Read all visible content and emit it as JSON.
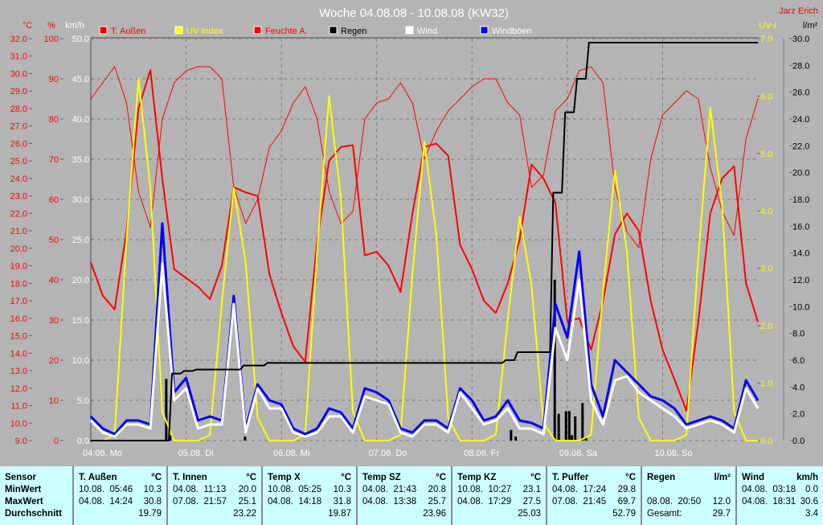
{
  "header": {
    "title": "Woche 04.08.08 - 10.08.08 (KW32)",
    "author": "Jarz Erich"
  },
  "units": {
    "temp": "°C",
    "hum": "%",
    "wind": "km/h",
    "uv": "UV-I",
    "rain": "l/m²"
  },
  "colors": {
    "t_aussen": "#ff0000",
    "uv": "#ffff00",
    "feuchte": "#ff0000",
    "regen": "#000000",
    "wind": "#ffffff",
    "windboeen": "#0000ff",
    "bg": "#b4b4b4",
    "table_bg": "#ccffff"
  },
  "legend": [
    {
      "label": "T. Außen",
      "color": "#ff0000",
      "text_color": "#ff0000"
    },
    {
      "label": "UV Index",
      "color": "#ffff00",
      "text_color": "#ffff00"
    },
    {
      "label": "Feuchte A.",
      "color": "#ff0000",
      "text_color": "#ff0000"
    },
    {
      "label": "Regen",
      "color": "#000000",
      "text_color": "#000000"
    },
    {
      "label": "Wind",
      "color": "#ffffff",
      "text_color": "#ffffff"
    },
    {
      "label": "Windböen",
      "color": "#0000ff",
      "text_color": "#ffffff"
    }
  ],
  "chart_data": {
    "type": "line",
    "title": "Woche 04.08.08 - 10.08.08 (KW32)",
    "x_ticks": [
      "04.08. Mo",
      "05.08. Di",
      "06.08. Mi",
      "07.08. Do",
      "08.08. Fr",
      "09.08. Sa",
      "10.08. So"
    ],
    "axes": {
      "temp": {
        "label": "°C",
        "range": [
          9.0,
          32.0
        ],
        "ticks": [
          "9.0",
          "10.0",
          "11.0",
          "12.0",
          "13.0",
          "14.0",
          "15.0",
          "16.0",
          "17.0",
          "18.0",
          "19.0",
          "20.0",
          "21.0",
          "22.0",
          "23.0",
          "24.0",
          "25.0",
          "26.0",
          "27.0",
          "28.0",
          "29.0",
          "30.0",
          "31.0",
          "32.0"
        ]
      },
      "hum": {
        "label": "%",
        "range": [
          0,
          100
        ],
        "ticks": [
          "0",
          "10",
          "20",
          "30",
          "40",
          "50",
          "60",
          "70",
          "80",
          "90",
          "100"
        ]
      },
      "wind": {
        "label": "km/h",
        "range": [
          0,
          50
        ],
        "ticks": [
          "0.0",
          "5.0",
          "10.0",
          "15.0",
          "20.0",
          "25.0",
          "30.0",
          "35.0",
          "40.0",
          "45.0",
          "50.0"
        ]
      },
      "uv": {
        "label": "UV-I",
        "range": [
          0,
          7
        ],
        "ticks": [
          "0.0",
          "1.0",
          "2.0",
          "3.0",
          "4.0",
          "5.0",
          "6.0",
          "7.0"
        ]
      },
      "rain": {
        "label": "l/m²",
        "range": [
          0,
          30
        ],
        "ticks": [
          "0.0",
          "2.0",
          "4.0",
          "6.0",
          "8.0",
          "10.0",
          "12.0",
          "14.0",
          "16.0",
          "18.0",
          "20.0",
          "22.0",
          "24.0",
          "26.0",
          "28.0",
          "30.0"
        ]
      }
    },
    "grid": true,
    "legend_position": "top",
    "x": [
      "04.08. 00:00",
      "04.08. 03:00",
      "04.08. 06:00",
      "04.08. 09:00",
      "04.08. 12:00",
      "04.08. 15:00",
      "04.08. 18:00",
      "04.08. 21:00",
      "05.08. 00:00",
      "05.08. 03:00",
      "05.08. 06:00",
      "05.08. 09:00",
      "05.08. 12:00",
      "05.08. 15:00",
      "05.08. 18:00",
      "05.08. 21:00",
      "06.08. 00:00",
      "06.08. 03:00",
      "06.08. 06:00",
      "06.08. 09:00",
      "06.08. 12:00",
      "06.08. 15:00",
      "06.08. 18:00",
      "06.08. 21:00",
      "07.08. 00:00",
      "07.08. 03:00",
      "07.08. 06:00",
      "07.08. 09:00",
      "07.08. 12:00",
      "07.08. 15:00",
      "07.08. 18:00",
      "07.08. 21:00",
      "08.08. 00:00",
      "08.08. 03:00",
      "08.08. 06:00",
      "08.08. 09:00",
      "08.08. 12:00",
      "08.08. 15:00",
      "08.08. 18:00",
      "08.08. 21:00",
      "09.08. 00:00",
      "09.08. 03:00",
      "09.08. 06:00",
      "09.08. 09:00",
      "09.08. 12:00",
      "09.08. 15:00",
      "09.08. 18:00",
      "09.08. 21:00",
      "10.08. 00:00",
      "10.08. 03:00",
      "10.08. 06:00",
      "10.08. 09:00",
      "10.08. 12:00",
      "10.08. 15:00",
      "10.08. 18:00",
      "10.08. 21:00",
      "11.08. 00:00"
    ],
    "series": [
      {
        "name": "Feuchte A.",
        "axis": "hum",
        "color": "#ff0000",
        "width": 1,
        "values": [
          85,
          89,
          93,
          84,
          62,
          53,
          80,
          89,
          92,
          93,
          93,
          90,
          63,
          54,
          60,
          73,
          77,
          84,
          88,
          80,
          62,
          54,
          57,
          80,
          84,
          85,
          89,
          84,
          70,
          77,
          82,
          85,
          88,
          90,
          90,
          84,
          81,
          63,
          66,
          82,
          85,
          92,
          93,
          89,
          63,
          52,
          48,
          70,
          81,
          84,
          87,
          85,
          68,
          57,
          51,
          75,
          85
        ]
      },
      {
        "name": "T. Außen",
        "axis": "temp",
        "color": "#ff0000",
        "width": 2,
        "values": [
          19.2,
          17.3,
          16.5,
          21.0,
          28.0,
          30.2,
          24.0,
          18.8,
          18.3,
          17.8,
          17.1,
          19.0,
          23.5,
          23.2,
          23.0,
          18.5,
          16.3,
          14.4,
          13.5,
          20.4,
          25.0,
          25.8,
          25.9,
          19.6,
          19.8,
          19.0,
          17.5,
          22.0,
          25.8,
          26.0,
          25.3,
          20.2,
          18.8,
          17.0,
          16.3,
          18.0,
          20.5,
          24.8,
          24.0,
          22.6,
          15.8,
          16.0,
          14.2,
          17.0,
          20.8,
          22.0,
          21.0,
          17.0,
          14.2,
          12.5,
          10.7,
          15.8,
          22.0,
          24.0,
          24.7,
          18.0,
          15.8
        ]
      },
      {
        "name": "UV Index",
        "axis": "uv",
        "color": "#ffff00",
        "width": 2,
        "values": [
          0,
          0,
          0.1,
          3.5,
          6.3,
          4.4,
          0.5,
          0,
          0,
          0,
          0.1,
          2.4,
          4.4,
          3.1,
          0.4,
          0,
          0,
          0,
          0.1,
          3.3,
          6.0,
          4.2,
          0.5,
          0,
          0,
          0,
          0.1,
          2.9,
          5.2,
          3.6,
          0.4,
          0,
          0,
          0,
          0.1,
          2.1,
          3.9,
          2.7,
          0.3,
          0,
          0,
          0,
          0.1,
          2.6,
          4.7,
          3.3,
          0.4,
          0,
          0,
          0,
          0.1,
          3.2,
          5.8,
          4.1,
          0.5,
          0,
          0
        ]
      },
      {
        "name": "Windböen",
        "axis": "wind",
        "color": "#0000ff",
        "width": 3,
        "values": [
          3,
          1.5,
          0.8,
          2.5,
          2.5,
          2,
          27,
          6,
          7.8,
          2.5,
          3,
          2.5,
          18,
          1.5,
          7,
          5,
          4.5,
          1.5,
          0.8,
          1.5,
          4,
          3.5,
          1.5,
          6.5,
          6,
          5,
          1.5,
          1,
          2.5,
          2.5,
          1.5,
          6.5,
          5,
          2.5,
          3,
          5,
          2.5,
          2.2,
          1.5,
          17,
          12.8,
          23.5,
          7,
          3,
          10,
          8.5,
          7,
          5.5,
          5,
          4,
          2,
          2.5,
          3,
          2.5,
          1.5,
          7.5,
          5
        ]
      },
      {
        "name": "Wind",
        "axis": "wind",
        "color": "#ffffff",
        "width": 3,
        "values": [
          2.5,
          1,
          0.5,
          2,
          2,
          1.5,
          22,
          5,
          6.5,
          1.5,
          2,
          2,
          17,
          1,
          6.5,
          4,
          4,
          1,
          0.5,
          1,
          3,
          3,
          1,
          5.5,
          5,
          4.5,
          1,
          0.5,
          2,
          2,
          1,
          6,
          4,
          2,
          2.5,
          4,
          1.5,
          1.5,
          0.8,
          14,
          10,
          20,
          5,
          2,
          7.5,
          8,
          6,
          5,
          4,
          3,
          1.5,
          2,
          2.5,
          2,
          1,
          6.5,
          4
        ]
      },
      {
        "name": "Regen",
        "axis": "rain",
        "color": "#000000",
        "width": 2,
        "step": true,
        "values": [
          0,
          0,
          0,
          0,
          0,
          0,
          0,
          5.0,
          5.2,
          5.3,
          5.3,
          5.3,
          5.3,
          5.6,
          5.6,
          5.8,
          5.8,
          5.8,
          5.8,
          5.8,
          5.8,
          5.8,
          5.8,
          5.8,
          5.8,
          5.8,
          5.8,
          5.8,
          5.8,
          5.8,
          5.8,
          5.8,
          5.8,
          5.8,
          5.8,
          6.0,
          6.6,
          6.6,
          6.6,
          18.5,
          24.5,
          27.0,
          29.7,
          29.7,
          29.7,
          29.7,
          29.7,
          29.7,
          29.7,
          29.7,
          29.7,
          29.7,
          29.7,
          29.7,
          29.7,
          29.7,
          29.7
        ]
      }
    ],
    "rain_bars": {
      "axis": "rain",
      "color": "#000000",
      "points": [
        {
          "x": "04.08. 19:00",
          "v": 4.6
        },
        {
          "x": "04.08. 20:00",
          "v": 0.4
        },
        {
          "x": "05.08. 14:50",
          "v": 0.3
        },
        {
          "x": "08.08. 09:50",
          "v": 0.8
        },
        {
          "x": "08.08. 11:00",
          "v": 0.3
        },
        {
          "x": "08.08. 20:50",
          "v": 12.0
        },
        {
          "x": "08.08. 21:50",
          "v": 2.0
        },
        {
          "x": "08.08. 23:40",
          "v": 2.2
        },
        {
          "x": "09.08. 00:30",
          "v": 2.2
        },
        {
          "x": "09.08. 01:10",
          "v": 0.4
        },
        {
          "x": "09.08. 02:00",
          "v": 1.8
        },
        {
          "x": "09.08. 03:50",
          "v": 2.8
        },
        {
          "x": "09.08. 04:40",
          "v": 0.3
        }
      ]
    }
  },
  "table": {
    "columns": [
      {
        "name": "Sensor",
        "unit": "",
        "min_time": "",
        "min": "",
        "max_time": "",
        "max": "",
        "avg": "",
        "rows": [
          "MinWert",
          "MaxWert",
          "Durchschnitt"
        ]
      },
      {
        "name": "T. Außen",
        "unit": "°C",
        "min_time": "10.08.  05:46",
        "min": "10.3",
        "max_time": "04.08.  14:24",
        "max": "30.8",
        "avg": "19.79"
      },
      {
        "name": "T. Innen",
        "unit": "°C",
        "min_time": "04.08.  11:13",
        "min": "20.0",
        "max_time": "07.08.  21:57",
        "max": "25.1",
        "avg": "23.22"
      },
      {
        "name": "Temp X",
        "unit": "°C",
        "min_time": "10.08.  05:25",
        "min": "10.3",
        "max_time": "04.08.  14:18",
        "max": "31.8",
        "avg": "19.87"
      },
      {
        "name": "Temp SZ",
        "unit": "°C",
        "min_time": "04.08.  21:43",
        "min": "20.8",
        "max_time": "04.08.  13:38",
        "max": "25.7",
        "avg": "23.96"
      },
      {
        "name": "Temp KZ",
        "unit": "°C",
        "min_time": "10.08.  10:27",
        "min": "23.1",
        "max_time": "04.08.  17:29",
        "max": "27.5",
        "avg": "25.03"
      },
      {
        "name": "T. Puffer",
        "unit": "°C",
        "min_time": "04.08.  17:24",
        "min": "29.8",
        "max_time": "07.08.  21:45",
        "max": "69.7",
        "avg": "52.79"
      },
      {
        "name": "Regen",
        "unit": "l/m²",
        "min_time": "",
        "min": "",
        "max_time": "08.08.  20:50",
        "max": "12.0",
        "avg_label": "Gesamt:",
        "avg": "29.7"
      },
      {
        "name": "Wind",
        "unit": "km/h",
        "min_time": "04.08.  03:18",
        "min": "0.0",
        "max_time": "04.08.  18:31",
        "max": "30.6",
        "avg": "3.4"
      }
    ]
  }
}
